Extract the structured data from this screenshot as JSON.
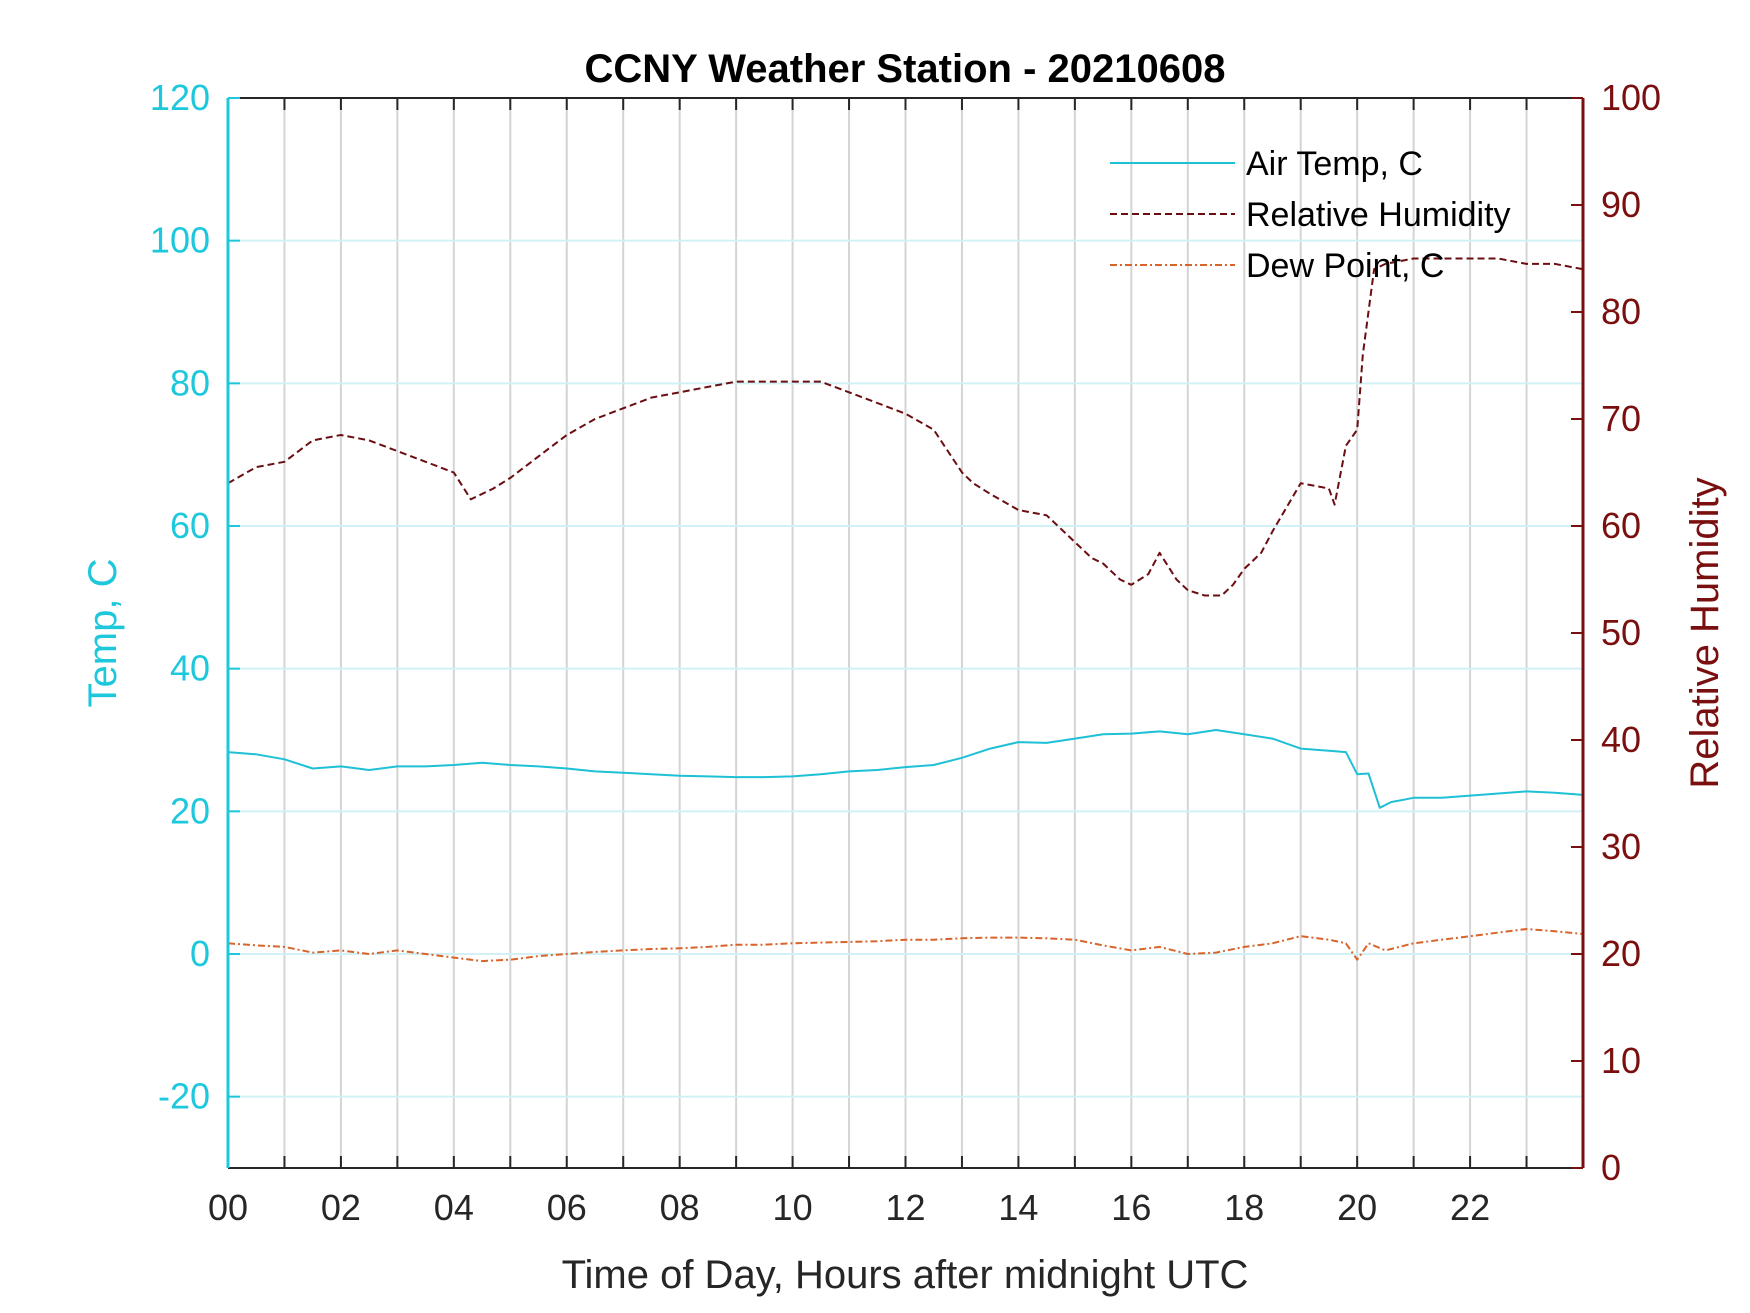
{
  "chart_data": {
    "type": "line",
    "title": "CCNY Weather Station - 20210608",
    "xlabel": "Time of Day, Hours after midnight UTC",
    "ylabel_left": "Temp, C",
    "ylabel_right": "Relative Humidity",
    "xlim": [
      0,
      24
    ],
    "ylim_left": [
      -30,
      120
    ],
    "ylim_right": [
      0,
      100
    ],
    "x_ticks": [
      0,
      2,
      4,
      6,
      8,
      10,
      12,
      14,
      16,
      18,
      20,
      22
    ],
    "x_tick_labels": [
      "00",
      "02",
      "04",
      "06",
      "08",
      "10",
      "12",
      "14",
      "16",
      "18",
      "20",
      "22"
    ],
    "y_left_ticks": [
      -20,
      0,
      20,
      40,
      60,
      80,
      100,
      120
    ],
    "y_right_ticks": [
      0,
      10,
      20,
      30,
      40,
      50,
      60,
      70,
      80,
      90,
      100
    ],
    "grid": true,
    "legend_position": "top-right",
    "colors": {
      "left_axis": "#1ec8dc",
      "right_axis": "#7a0f0f",
      "temp_line": "#1ec0d6",
      "rh_line": "#6b0e12",
      "dew_line": "#d8642a"
    },
    "series": [
      {
        "name": "Air Temp, C",
        "axis": "left",
        "style": "solid",
        "x": [
          0,
          0.5,
          1,
          1.5,
          2,
          2.5,
          3,
          3.5,
          4,
          4.5,
          5,
          5.5,
          6,
          6.5,
          7,
          7.5,
          8,
          8.5,
          9,
          9.5,
          10,
          10.5,
          11,
          11.5,
          12,
          12.5,
          13,
          13.5,
          14,
          14.5,
          15,
          15.5,
          16,
          16.5,
          17,
          17.5,
          18,
          18.5,
          19,
          19.5,
          19.8,
          20,
          20.2,
          20.4,
          20.6,
          21,
          21.5,
          22,
          22.5,
          23,
          23.5,
          24
        ],
        "values": [
          28.3,
          28,
          27.3,
          26,
          26.3,
          25.8,
          26.3,
          26.3,
          26.5,
          26.8,
          26.5,
          26.3,
          26,
          25.6,
          25.4,
          25.2,
          25,
          24.9,
          24.8,
          24.8,
          24.9,
          25.2,
          25.6,
          25.8,
          26.2,
          26.5,
          27.5,
          28.8,
          29.7,
          29.6,
          30.2,
          30.8,
          30.9,
          31.2,
          30.8,
          31.4,
          30.8,
          30.2,
          28.8,
          28.5,
          28.3,
          25.2,
          25.3,
          20.5,
          21.3,
          21.9,
          21.9,
          22.2,
          22.5,
          22.8,
          22.6,
          22.3
        ]
      },
      {
        "name": "Relative Humidity",
        "axis": "right",
        "style": "dashed",
        "x": [
          0,
          0.5,
          1,
          1.5,
          2,
          2.5,
          3,
          3.5,
          4,
          4.3,
          4.7,
          5,
          5.5,
          6,
          6.5,
          7,
          7.5,
          8,
          8.5,
          9,
          9.5,
          10,
          10.5,
          11,
          11.5,
          12,
          12.5,
          13,
          13.2,
          13.5,
          14,
          14.5,
          15,
          15.3,
          15.5,
          15.8,
          16,
          16.3,
          16.5,
          16.8,
          17,
          17.3,
          17.6,
          17.8,
          18,
          18.3,
          18.5,
          19,
          19.5,
          19.6,
          19.8,
          20,
          20.1,
          20.3,
          20.5,
          21,
          21.5,
          22,
          22.5,
          23,
          23.5,
          24
        ],
        "values": [
          64,
          65.5,
          66,
          68,
          68.5,
          68,
          67,
          66,
          65,
          62.5,
          63.5,
          64.5,
          66.5,
          68.5,
          70,
          71,
          72,
          72.5,
          73,
          73.5,
          73.5,
          73.5,
          73.5,
          72.5,
          71.5,
          70.5,
          69,
          65,
          64,
          63,
          61.5,
          61,
          58.5,
          57,
          56.5,
          55,
          54.5,
          55.5,
          57.5,
          55,
          54,
          53.5,
          53.5,
          54.5,
          56,
          57.5,
          59.5,
          64,
          63.5,
          62,
          67.5,
          69,
          76,
          84,
          84.5,
          85,
          85,
          85,
          85,
          84.5,
          84.5,
          84
        ]
      },
      {
        "name": "Dew Point, C",
        "axis": "left",
        "style": "dashdot",
        "x": [
          0,
          0.5,
          1,
          1.5,
          2,
          2.5,
          3,
          3.5,
          4,
          4.5,
          5,
          5.5,
          6,
          6.5,
          7,
          7.5,
          8,
          8.5,
          9,
          9.5,
          10,
          10.5,
          11,
          11.5,
          12,
          12.5,
          13,
          13.5,
          14,
          14.5,
          15,
          15.5,
          16,
          16.5,
          17,
          17.5,
          18,
          18.5,
          19,
          19.5,
          19.8,
          20,
          20.2,
          20.5,
          21,
          21.5,
          22,
          22.5,
          23,
          23.5,
          24
        ],
        "values": [
          1.5,
          1.2,
          1,
          0.2,
          0.5,
          0,
          0.5,
          0,
          -0.5,
          -1,
          -0.8,
          -0.3,
          0,
          0.3,
          0.5,
          0.7,
          0.8,
          1,
          1.3,
          1.3,
          1.5,
          1.6,
          1.7,
          1.8,
          2,
          2,
          2.2,
          2.3,
          2.3,
          2.2,
          2,
          1.2,
          0.5,
          1,
          0,
          0.2,
          1,
          1.5,
          2.5,
          2,
          1.5,
          -0.8,
          1.5,
          0.5,
          1.5,
          2,
          2.5,
          3,
          3.5,
          3.2,
          2.8
        ]
      }
    ]
  }
}
